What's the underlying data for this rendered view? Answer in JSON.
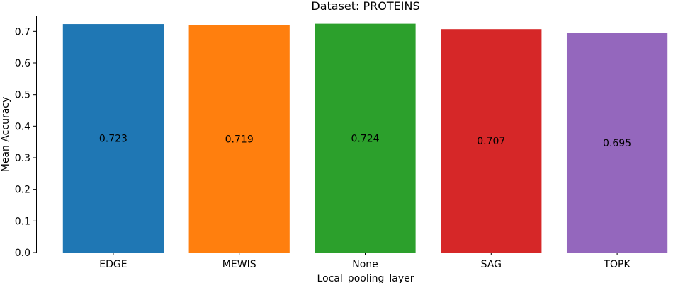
{
  "chart_data": {
    "type": "bar",
    "title": "Dataset: PROTEINS",
    "xlabel": "Local_pooling_layer",
    "ylabel": "Mean Accuracy",
    "categories": [
      "EDGE",
      "MEWIS",
      "None",
      "SAG",
      "TOPK"
    ],
    "values": [
      0.723,
      0.719,
      0.724,
      0.707,
      0.695
    ],
    "value_labels": [
      "0.723",
      "0.719",
      "0.724",
      "0.707",
      "0.695"
    ],
    "colors": [
      "#1f77b4",
      "#ff7f0e",
      "#2ca02c",
      "#d62728",
      "#9467bd"
    ],
    "ylim": [
      0,
      0.75
    ],
    "yticks": [
      0.0,
      0.1,
      0.2,
      0.3,
      0.4,
      0.5,
      0.6,
      0.7
    ],
    "ytick_labels": [
      "0.0",
      "0.1",
      "0.2",
      "0.3",
      "0.4",
      "0.5",
      "0.6",
      "0.7"
    ],
    "grid": false,
    "legend": "none"
  }
}
